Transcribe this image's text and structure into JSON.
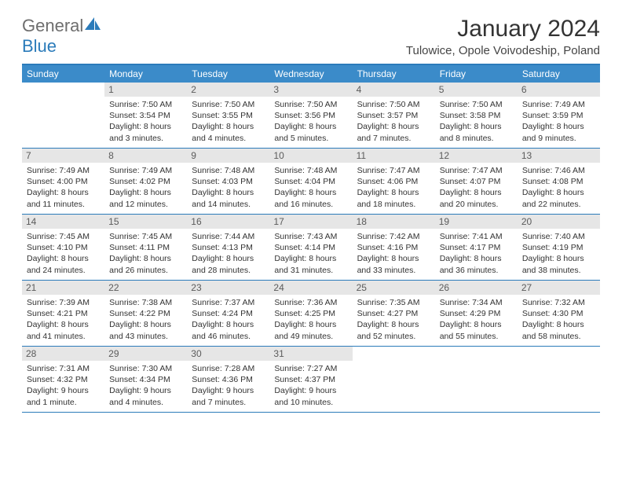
{
  "brand": {
    "part1": "General",
    "part2": "Blue"
  },
  "title": "January 2024",
  "location": "Tulowice, Opole Voivodeship, Poland",
  "colors": {
    "accent": "#3b8bc9",
    "accent_border": "#2b7bba",
    "daynum_bg": "#e6e6e6",
    "daynum_fg": "#5b5b5b",
    "text": "#333333"
  },
  "day_names": [
    "Sunday",
    "Monday",
    "Tuesday",
    "Wednesday",
    "Thursday",
    "Friday",
    "Saturday"
  ],
  "weeks": [
    [
      null,
      {
        "n": "1",
        "sunrise": "7:50 AM",
        "sunset": "3:54 PM",
        "daylight": "8 hours and 3 minutes."
      },
      {
        "n": "2",
        "sunrise": "7:50 AM",
        "sunset": "3:55 PM",
        "daylight": "8 hours and 4 minutes."
      },
      {
        "n": "3",
        "sunrise": "7:50 AM",
        "sunset": "3:56 PM",
        "daylight": "8 hours and 5 minutes."
      },
      {
        "n": "4",
        "sunrise": "7:50 AM",
        "sunset": "3:57 PM",
        "daylight": "8 hours and 7 minutes."
      },
      {
        "n": "5",
        "sunrise": "7:50 AM",
        "sunset": "3:58 PM",
        "daylight": "8 hours and 8 minutes."
      },
      {
        "n": "6",
        "sunrise": "7:49 AM",
        "sunset": "3:59 PM",
        "daylight": "8 hours and 9 minutes."
      }
    ],
    [
      {
        "n": "7",
        "sunrise": "7:49 AM",
        "sunset": "4:00 PM",
        "daylight": "8 hours and 11 minutes."
      },
      {
        "n": "8",
        "sunrise": "7:49 AM",
        "sunset": "4:02 PM",
        "daylight": "8 hours and 12 minutes."
      },
      {
        "n": "9",
        "sunrise": "7:48 AM",
        "sunset": "4:03 PM",
        "daylight": "8 hours and 14 minutes."
      },
      {
        "n": "10",
        "sunrise": "7:48 AM",
        "sunset": "4:04 PM",
        "daylight": "8 hours and 16 minutes."
      },
      {
        "n": "11",
        "sunrise": "7:47 AM",
        "sunset": "4:06 PM",
        "daylight": "8 hours and 18 minutes."
      },
      {
        "n": "12",
        "sunrise": "7:47 AM",
        "sunset": "4:07 PM",
        "daylight": "8 hours and 20 minutes."
      },
      {
        "n": "13",
        "sunrise": "7:46 AM",
        "sunset": "4:08 PM",
        "daylight": "8 hours and 22 minutes."
      }
    ],
    [
      {
        "n": "14",
        "sunrise": "7:45 AM",
        "sunset": "4:10 PM",
        "daylight": "8 hours and 24 minutes."
      },
      {
        "n": "15",
        "sunrise": "7:45 AM",
        "sunset": "4:11 PM",
        "daylight": "8 hours and 26 minutes."
      },
      {
        "n": "16",
        "sunrise": "7:44 AM",
        "sunset": "4:13 PM",
        "daylight": "8 hours and 28 minutes."
      },
      {
        "n": "17",
        "sunrise": "7:43 AM",
        "sunset": "4:14 PM",
        "daylight": "8 hours and 31 minutes."
      },
      {
        "n": "18",
        "sunrise": "7:42 AM",
        "sunset": "4:16 PM",
        "daylight": "8 hours and 33 minutes."
      },
      {
        "n": "19",
        "sunrise": "7:41 AM",
        "sunset": "4:17 PM",
        "daylight": "8 hours and 36 minutes."
      },
      {
        "n": "20",
        "sunrise": "7:40 AM",
        "sunset": "4:19 PM",
        "daylight": "8 hours and 38 minutes."
      }
    ],
    [
      {
        "n": "21",
        "sunrise": "7:39 AM",
        "sunset": "4:21 PM",
        "daylight": "8 hours and 41 minutes."
      },
      {
        "n": "22",
        "sunrise": "7:38 AM",
        "sunset": "4:22 PM",
        "daylight": "8 hours and 43 minutes."
      },
      {
        "n": "23",
        "sunrise": "7:37 AM",
        "sunset": "4:24 PM",
        "daylight": "8 hours and 46 minutes."
      },
      {
        "n": "24",
        "sunrise": "7:36 AM",
        "sunset": "4:25 PM",
        "daylight": "8 hours and 49 minutes."
      },
      {
        "n": "25",
        "sunrise": "7:35 AM",
        "sunset": "4:27 PM",
        "daylight": "8 hours and 52 minutes."
      },
      {
        "n": "26",
        "sunrise": "7:34 AM",
        "sunset": "4:29 PM",
        "daylight": "8 hours and 55 minutes."
      },
      {
        "n": "27",
        "sunrise": "7:32 AM",
        "sunset": "4:30 PM",
        "daylight": "8 hours and 58 minutes."
      }
    ],
    [
      {
        "n": "28",
        "sunrise": "7:31 AM",
        "sunset": "4:32 PM",
        "daylight": "9 hours and 1 minute."
      },
      {
        "n": "29",
        "sunrise": "7:30 AM",
        "sunset": "4:34 PM",
        "daylight": "9 hours and 4 minutes."
      },
      {
        "n": "30",
        "sunrise": "7:28 AM",
        "sunset": "4:36 PM",
        "daylight": "9 hours and 7 minutes."
      },
      {
        "n": "31",
        "sunrise": "7:27 AM",
        "sunset": "4:37 PM",
        "daylight": "9 hours and 10 minutes."
      },
      null,
      null,
      null
    ]
  ],
  "labels": {
    "sunrise": "Sunrise:",
    "sunset": "Sunset:",
    "daylight": "Daylight:"
  }
}
